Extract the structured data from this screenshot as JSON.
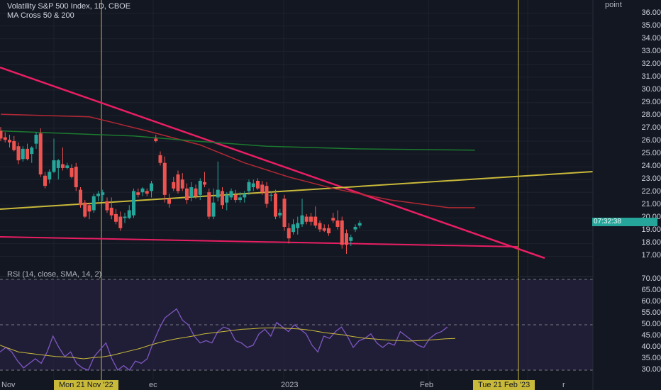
{
  "legend": {
    "title": "Volatility S&P 500 Index, 1D, CBOE",
    "ma": "MA Cross 50 & 200",
    "rsi": "RSI (14, close, SMA, 14, 2)"
  },
  "price_axis": {
    "header": "point",
    "labels": [
      "36.00",
      "35.00",
      "34.00",
      "33.00",
      "32.00",
      "31.00",
      "30.00",
      "29.00",
      "28.00",
      "27.00",
      "26.00",
      "25.00",
      "24.00",
      "23.00",
      "22.00",
      "21.00",
      "20.00",
      "19.00",
      "18.00",
      "17.00"
    ],
    "current_price_tag": "07:32:38"
  },
  "rsi_axis": {
    "labels": [
      "70.00",
      "65.00",
      "60.00",
      "55.00",
      "50.00",
      "45.00",
      "40.00",
      "35.00",
      "30.00"
    ]
  },
  "time_axis": {
    "labels": [
      "Nov",
      "ec",
      "2023",
      "Feb",
      "r"
    ],
    "crosshair_left": "Mon 21 Nov '22",
    "crosshair_right": "Tue 21 Feb '23"
  },
  "colors": {
    "background": "#131722",
    "up": "#26a69a",
    "down": "#ef5350",
    "ma50": "#b22833",
    "ma200": "#1b7a2f",
    "trendline": "#e91e63",
    "channel": "#c9b93a",
    "rsi": "#7e57c2",
    "rsi_ma": "#c9b93a",
    "rsi_band": "#2b2447"
  },
  "chart_data": [
    {
      "type": "candlestick",
      "title": "Volatility S&P 500 Index, 1D, CBOE",
      "ylim": [
        16.4,
        36.9
      ],
      "x_first": "2022-11-01",
      "candles": [
        {
          "o": 26.8,
          "h": 27.1,
          "l": 26.0,
          "c": 26.2
        },
        {
          "o": 26.3,
          "h": 26.7,
          "l": 25.9,
          "c": 26.1
        },
        {
          "o": 26.1,
          "h": 26.5,
          "l": 25.5,
          "c": 25.9
        },
        {
          "o": 26.0,
          "h": 26.4,
          "l": 25.2,
          "c": 25.3
        },
        {
          "o": 25.6,
          "h": 25.9,
          "l": 24.2,
          "c": 24.5
        },
        {
          "o": 24.6,
          "h": 25.6,
          "l": 24.4,
          "c": 25.4
        },
        {
          "o": 25.4,
          "h": 25.8,
          "l": 24.5,
          "c": 24.6
        },
        {
          "o": 25.0,
          "h": 25.6,
          "l": 24.3,
          "c": 25.5
        },
        {
          "o": 25.8,
          "h": 26.7,
          "l": 25.4,
          "c": 26.5
        },
        {
          "o": 26.6,
          "h": 27.0,
          "l": 23.2,
          "c": 23.4
        },
        {
          "o": 23.3,
          "h": 23.6,
          "l": 22.3,
          "c": 22.5
        },
        {
          "o": 23.0,
          "h": 23.8,
          "l": 22.7,
          "c": 23.6
        },
        {
          "o": 23.6,
          "h": 26.2,
          "l": 23.5,
          "c": 24.5
        },
        {
          "o": 23.9,
          "h": 24.6,
          "l": 23.0,
          "c": 24.5
        },
        {
          "o": 24.2,
          "h": 25.5,
          "l": 23.7,
          "c": 23.9
        },
        {
          "o": 23.9,
          "h": 24.3,
          "l": 23.8,
          "c": 24.1
        },
        {
          "o": 23.9,
          "h": 24.2,
          "l": 23.1,
          "c": 23.2
        },
        {
          "o": 24.0,
          "h": 24.3,
          "l": 22.1,
          "c": 22.4
        },
        {
          "o": 22.2,
          "h": 22.4,
          "l": 20.8,
          "c": 21.0
        },
        {
          "o": 21.2,
          "h": 21.4,
          "l": 20.0,
          "c": 20.1
        },
        {
          "o": 21.0,
          "h": 21.2,
          "l": 19.9,
          "c": 20.5
        },
        {
          "o": 20.6,
          "h": 21.9,
          "l": 20.4,
          "c": 21.7
        },
        {
          "o": 21.7,
          "h": 22.1,
          "l": 21.3,
          "c": 21.9
        },
        {
          "o": 21.8,
          "h": 22.2,
          "l": 21.3,
          "c": 22.0
        },
        {
          "o": 21.3,
          "h": 21.6,
          "l": 20.4,
          "c": 20.6
        },
        {
          "o": 20.8,
          "h": 21.6,
          "l": 19.9,
          "c": 20.2
        },
        {
          "o": 20.3,
          "h": 20.7,
          "l": 19.5,
          "c": 19.7
        },
        {
          "o": 20.1,
          "h": 20.5,
          "l": 19.0,
          "c": 19.2
        },
        {
          "o": 20.0,
          "h": 20.4,
          "l": 19.6,
          "c": 20.1
        },
        {
          "o": 20.0,
          "h": 21.0,
          "l": 19.9,
          "c": 20.6
        },
        {
          "o": 20.2,
          "h": 22.3,
          "l": 20.0,
          "c": 22.1
        },
        {
          "o": 22.0,
          "h": 22.3,
          "l": 21.6,
          "c": 21.8
        },
        {
          "o": 22.0,
          "h": 22.4,
          "l": 21.7,
          "c": 22.3
        },
        {
          "o": 22.1,
          "h": 22.3,
          "l": 21.7,
          "c": 21.9
        },
        {
          "o": 22.1,
          "h": 22.9,
          "l": 21.6,
          "c": 22.7
        },
        {
          "o": 26.2,
          "h": 26.5,
          "l": 25.9,
          "c": 26.0
        },
        {
          "o": 24.9,
          "h": 25.2,
          "l": 24.1,
          "c": 24.3
        },
        {
          "o": 24.3,
          "h": 24.8,
          "l": 21.2,
          "c": 21.8
        },
        {
          "o": 21.5,
          "h": 21.9,
          "l": 20.8,
          "c": 21.1
        },
        {
          "o": 22.8,
          "h": 23.2,
          "l": 22.1,
          "c": 22.3
        },
        {
          "o": 23.4,
          "h": 23.7,
          "l": 21.9,
          "c": 22.1
        },
        {
          "o": 23.0,
          "h": 23.5,
          "l": 22.1,
          "c": 22.3
        },
        {
          "o": 22.3,
          "h": 22.7,
          "l": 21.1,
          "c": 21.4
        },
        {
          "o": 21.6,
          "h": 22.8,
          "l": 21.3,
          "c": 22.4
        },
        {
          "o": 22.3,
          "h": 22.6,
          "l": 21.5,
          "c": 21.7
        },
        {
          "o": 21.8,
          "h": 23.1,
          "l": 21.4,
          "c": 22.9
        },
        {
          "o": 22.8,
          "h": 23.6,
          "l": 22.4,
          "c": 22.6
        },
        {
          "o": 22.0,
          "h": 22.3,
          "l": 19.9,
          "c": 20.1
        },
        {
          "o": 20.1,
          "h": 22.3,
          "l": 19.9,
          "c": 21.2
        },
        {
          "o": 21.6,
          "h": 24.4,
          "l": 21.3,
          "c": 22.2
        },
        {
          "o": 22.1,
          "h": 22.4,
          "l": 20.7,
          "c": 21.0
        },
        {
          "o": 21.2,
          "h": 22.0,
          "l": 20.6,
          "c": 21.8
        },
        {
          "o": 21.6,
          "h": 22.3,
          "l": 21.4,
          "c": 22.1
        },
        {
          "o": 21.8,
          "h": 22.2,
          "l": 21.2,
          "c": 21.4
        },
        {
          "o": 21.4,
          "h": 22.0,
          "l": 21.2,
          "c": 21.6
        },
        {
          "o": 21.6,
          "h": 22.1,
          "l": 21.2,
          "c": 21.9
        },
        {
          "o": 22.1,
          "h": 23.0,
          "l": 21.8,
          "c": 22.8
        },
        {
          "o": 22.4,
          "h": 23.0,
          "l": 22.1,
          "c": 22.7
        },
        {
          "o": 22.9,
          "h": 23.1,
          "l": 22.2,
          "c": 22.3
        },
        {
          "o": 22.6,
          "h": 22.9,
          "l": 21.8,
          "c": 22.0
        },
        {
          "o": 22.5,
          "h": 22.8,
          "l": 20.8,
          "c": 21.1
        },
        {
          "o": 21.8,
          "h": 22.1,
          "l": 21.3,
          "c": 21.8
        },
        {
          "o": 21.9,
          "h": 22.2,
          "l": 19.9,
          "c": 20.1
        },
        {
          "o": 20.2,
          "h": 20.7,
          "l": 20.0,
          "c": 20.4
        },
        {
          "o": 21.5,
          "h": 21.8,
          "l": 19.0,
          "c": 19.3
        },
        {
          "o": 19.2,
          "h": 19.6,
          "l": 18.0,
          "c": 18.4
        },
        {
          "o": 18.9,
          "h": 19.9,
          "l": 18.7,
          "c": 19.5
        },
        {
          "o": 19.2,
          "h": 20.1,
          "l": 18.7,
          "c": 19.6
        },
        {
          "o": 19.5,
          "h": 21.5,
          "l": 19.3,
          "c": 20.2
        },
        {
          "o": 20.1,
          "h": 20.3,
          "l": 19.5,
          "c": 19.7
        },
        {
          "o": 20.1,
          "h": 20.4,
          "l": 19.4,
          "c": 19.7
        },
        {
          "o": 20.1,
          "h": 20.9,
          "l": 19.2,
          "c": 19.4
        },
        {
          "o": 19.6,
          "h": 19.8,
          "l": 18.9,
          "c": 19.1
        },
        {
          "o": 19.2,
          "h": 19.5,
          "l": 18.9,
          "c": 19.0
        },
        {
          "o": 19.2,
          "h": 19.5,
          "l": 18.6,
          "c": 18.8
        },
        {
          "o": 20.0,
          "h": 20.4,
          "l": 19.6,
          "c": 19.8
        },
        {
          "o": 19.8,
          "h": 20.6,
          "l": 19.1,
          "c": 19.3
        },
        {
          "o": 19.8,
          "h": 20.1,
          "l": 17.6,
          "c": 17.9
        },
        {
          "o": 18.8,
          "h": 19.1,
          "l": 17.2,
          "c": 17.9
        },
        {
          "o": 18.2,
          "h": 18.7,
          "l": 17.8,
          "c": 18.5
        },
        {
          "o": 19.1,
          "h": 19.5,
          "l": 18.9,
          "c": 19.3
        },
        {
          "o": 19.4,
          "h": 19.8,
          "l": 19.2,
          "c": 19.6
        }
      ],
      "ma50": [
        {
          "i": 0,
          "v": 28.1
        },
        {
          "i": 20,
          "v": 27.9
        },
        {
          "i": 26,
          "v": 27.4
        },
        {
          "i": 33,
          "v": 26.8
        },
        {
          "i": 45,
          "v": 25.7
        },
        {
          "i": 55,
          "v": 24.3
        },
        {
          "i": 65,
          "v": 23.2
        },
        {
          "i": 75,
          "v": 22.3
        },
        {
          "i": 88,
          "v": 21.4
        },
        {
          "i": 101,
          "v": 20.8
        },
        {
          "i": 107,
          "v": 20.8
        }
      ],
      "ma200": [
        {
          "i": 0,
          "v": 26.8
        },
        {
          "i": 30,
          "v": 26.4
        },
        {
          "i": 44,
          "v": 26.0
        },
        {
          "i": 60,
          "v": 25.6
        },
        {
          "i": 80,
          "v": 25.4
        },
        {
          "i": 107,
          "v": 25.3
        }
      ]
    },
    {
      "type": "line",
      "title": "RSI (14, close, SMA, 14, 2)",
      "ylim": [
        28.0,
        71.0
      ],
      "bands": [
        30,
        50,
        70
      ],
      "series": [
        {
          "values": [
            38,
            40,
            38,
            34,
            31,
            33,
            35,
            33,
            38,
            45,
            40,
            36,
            38,
            33,
            31,
            30,
            36,
            39,
            42,
            35,
            30,
            32,
            30,
            34,
            33,
            35,
            42,
            48,
            53,
            55,
            57,
            52,
            50,
            45,
            42,
            43,
            42,
            47,
            49,
            48,
            43,
            42,
            40,
            41,
            46,
            48,
            45,
            51,
            49,
            47,
            50,
            48,
            46,
            41,
            38,
            45,
            44,
            47,
            49,
            45,
            40,
            43,
            44,
            46,
            42,
            40,
            42,
            41,
            47,
            45,
            43,
            41,
            40,
            44,
            46,
            47,
            49
          ]
        },
        {
          "values": [
            41.0,
            39.5,
            38.0,
            37.5,
            37.0,
            36.5,
            36.0,
            35.8,
            35.5,
            35.0,
            35.5,
            35.8,
            36.5,
            37.5,
            38.5,
            39.5,
            40.8,
            42.0,
            43.0,
            43.8,
            44.5,
            45.2,
            46.0,
            46.5,
            47.0,
            47.5,
            48.0,
            48.2,
            48.5,
            48.6,
            48.6,
            48.4,
            48.2,
            47.8,
            47.2,
            46.5,
            46.0,
            45.5,
            44.8,
            44.2,
            43.8,
            43.5,
            43.2,
            43.0,
            42.8,
            43.0,
            43.2,
            43.5,
            43.8,
            44.0
          ]
        }
      ]
    }
  ]
}
